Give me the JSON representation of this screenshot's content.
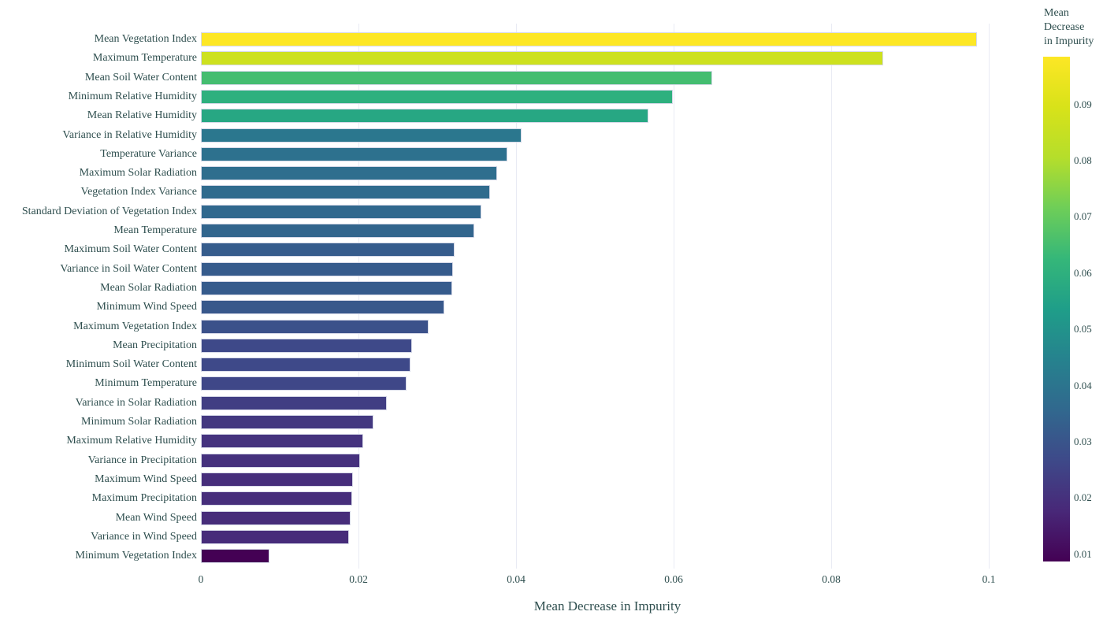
{
  "figure": {
    "x_axis_title": "Mean Decrease in Impurity",
    "x_tick_labels": [
      "0",
      "0.02",
      "0.04",
      "0.06",
      "0.08",
      "0.1"
    ],
    "colorbar": {
      "title_lines": [
        "Mean",
        "Decrease",
        "in Impurity"
      ],
      "tick_labels": [
        "0.09",
        "0.08",
        "0.07",
        "0.06",
        "0.05",
        "0.04",
        "0.03",
        "0.02",
        "0.01"
      ]
    }
  },
  "chart_data": {
    "type": "bar",
    "orientation": "horizontal",
    "title": "",
    "xlabel": "Mean Decrease in Impurity",
    "ylabel": "",
    "sort": "descending",
    "grid": "vertical-only",
    "legend_position": "none",
    "colormap": "viridis",
    "color_min": 0.0087,
    "color_max": 0.0985,
    "xlim": [
      0,
      0.1034
    ],
    "x_ticks": [
      0,
      0.02,
      0.04,
      0.06,
      0.08,
      0.1
    ],
    "categories": [
      "Mean Vegetation Index",
      "Maximum Temperature",
      "Mean Soil Water Content",
      "Minimum Relative Humidity",
      "Mean Relative Humidity",
      "Variance in Relative Humidity",
      "Temperature Variance",
      "Maximum Solar Radiation",
      "Vegetation Index Variance",
      "Standard Deviation of Vegetation Index",
      "Mean Temperature",
      "Maximum Soil Water Content",
      "Variance in Soil Water Content",
      "Mean Solar Radiation",
      "Minimum Wind Speed",
      "Maximum Vegetation Index",
      "Mean Precipitation",
      "Minimum Soil Water Content",
      "Minimum Temperature",
      "Variance in Solar Radiation",
      "Minimum Solar Radiation",
      "Maximum Relative Humidity",
      "Variance in Precipitation",
      "Maximum Wind Speed",
      "Maximum Precipitation",
      "Mean Wind Speed",
      "Variance in Wind Speed",
      "Minimum Vegetation Index"
    ],
    "values": [
      0.0985,
      0.0866,
      0.0649,
      0.0599,
      0.0568,
      0.0407,
      0.0389,
      0.0376,
      0.0367,
      0.0356,
      0.0347,
      0.0322,
      0.032,
      0.0319,
      0.0309,
      0.0289,
      0.0268,
      0.0266,
      0.0261,
      0.0236,
      0.0219,
      0.0206,
      0.0202,
      0.0193,
      0.0192,
      0.019,
      0.0188,
      0.0087
    ],
    "colorbar": {
      "title": "Mean Decrease in Impurity",
      "position": "right",
      "ticks": [
        0.09,
        0.08,
        0.07,
        0.06,
        0.05,
        0.04,
        0.03,
        0.02,
        0.01
      ]
    }
  },
  "style": {
    "background": "#ffffff",
    "text_color": "#2f4f4f",
    "gridline_color": "#e9ebf4",
    "bar_border_color": "#d6d9e8",
    "viridis_stops": [
      [
        0.0,
        "#440154"
      ],
      [
        0.1,
        "#482878"
      ],
      [
        0.2,
        "#3e4989"
      ],
      [
        0.3,
        "#31688e"
      ],
      [
        0.4,
        "#26828e"
      ],
      [
        0.5,
        "#1f9e89"
      ],
      [
        0.6,
        "#35b779"
      ],
      [
        0.7,
        "#6ece58"
      ],
      [
        0.8,
        "#b5de2b"
      ],
      [
        0.9,
        "#d8e219"
      ],
      [
        1.0,
        "#fde725"
      ]
    ]
  }
}
